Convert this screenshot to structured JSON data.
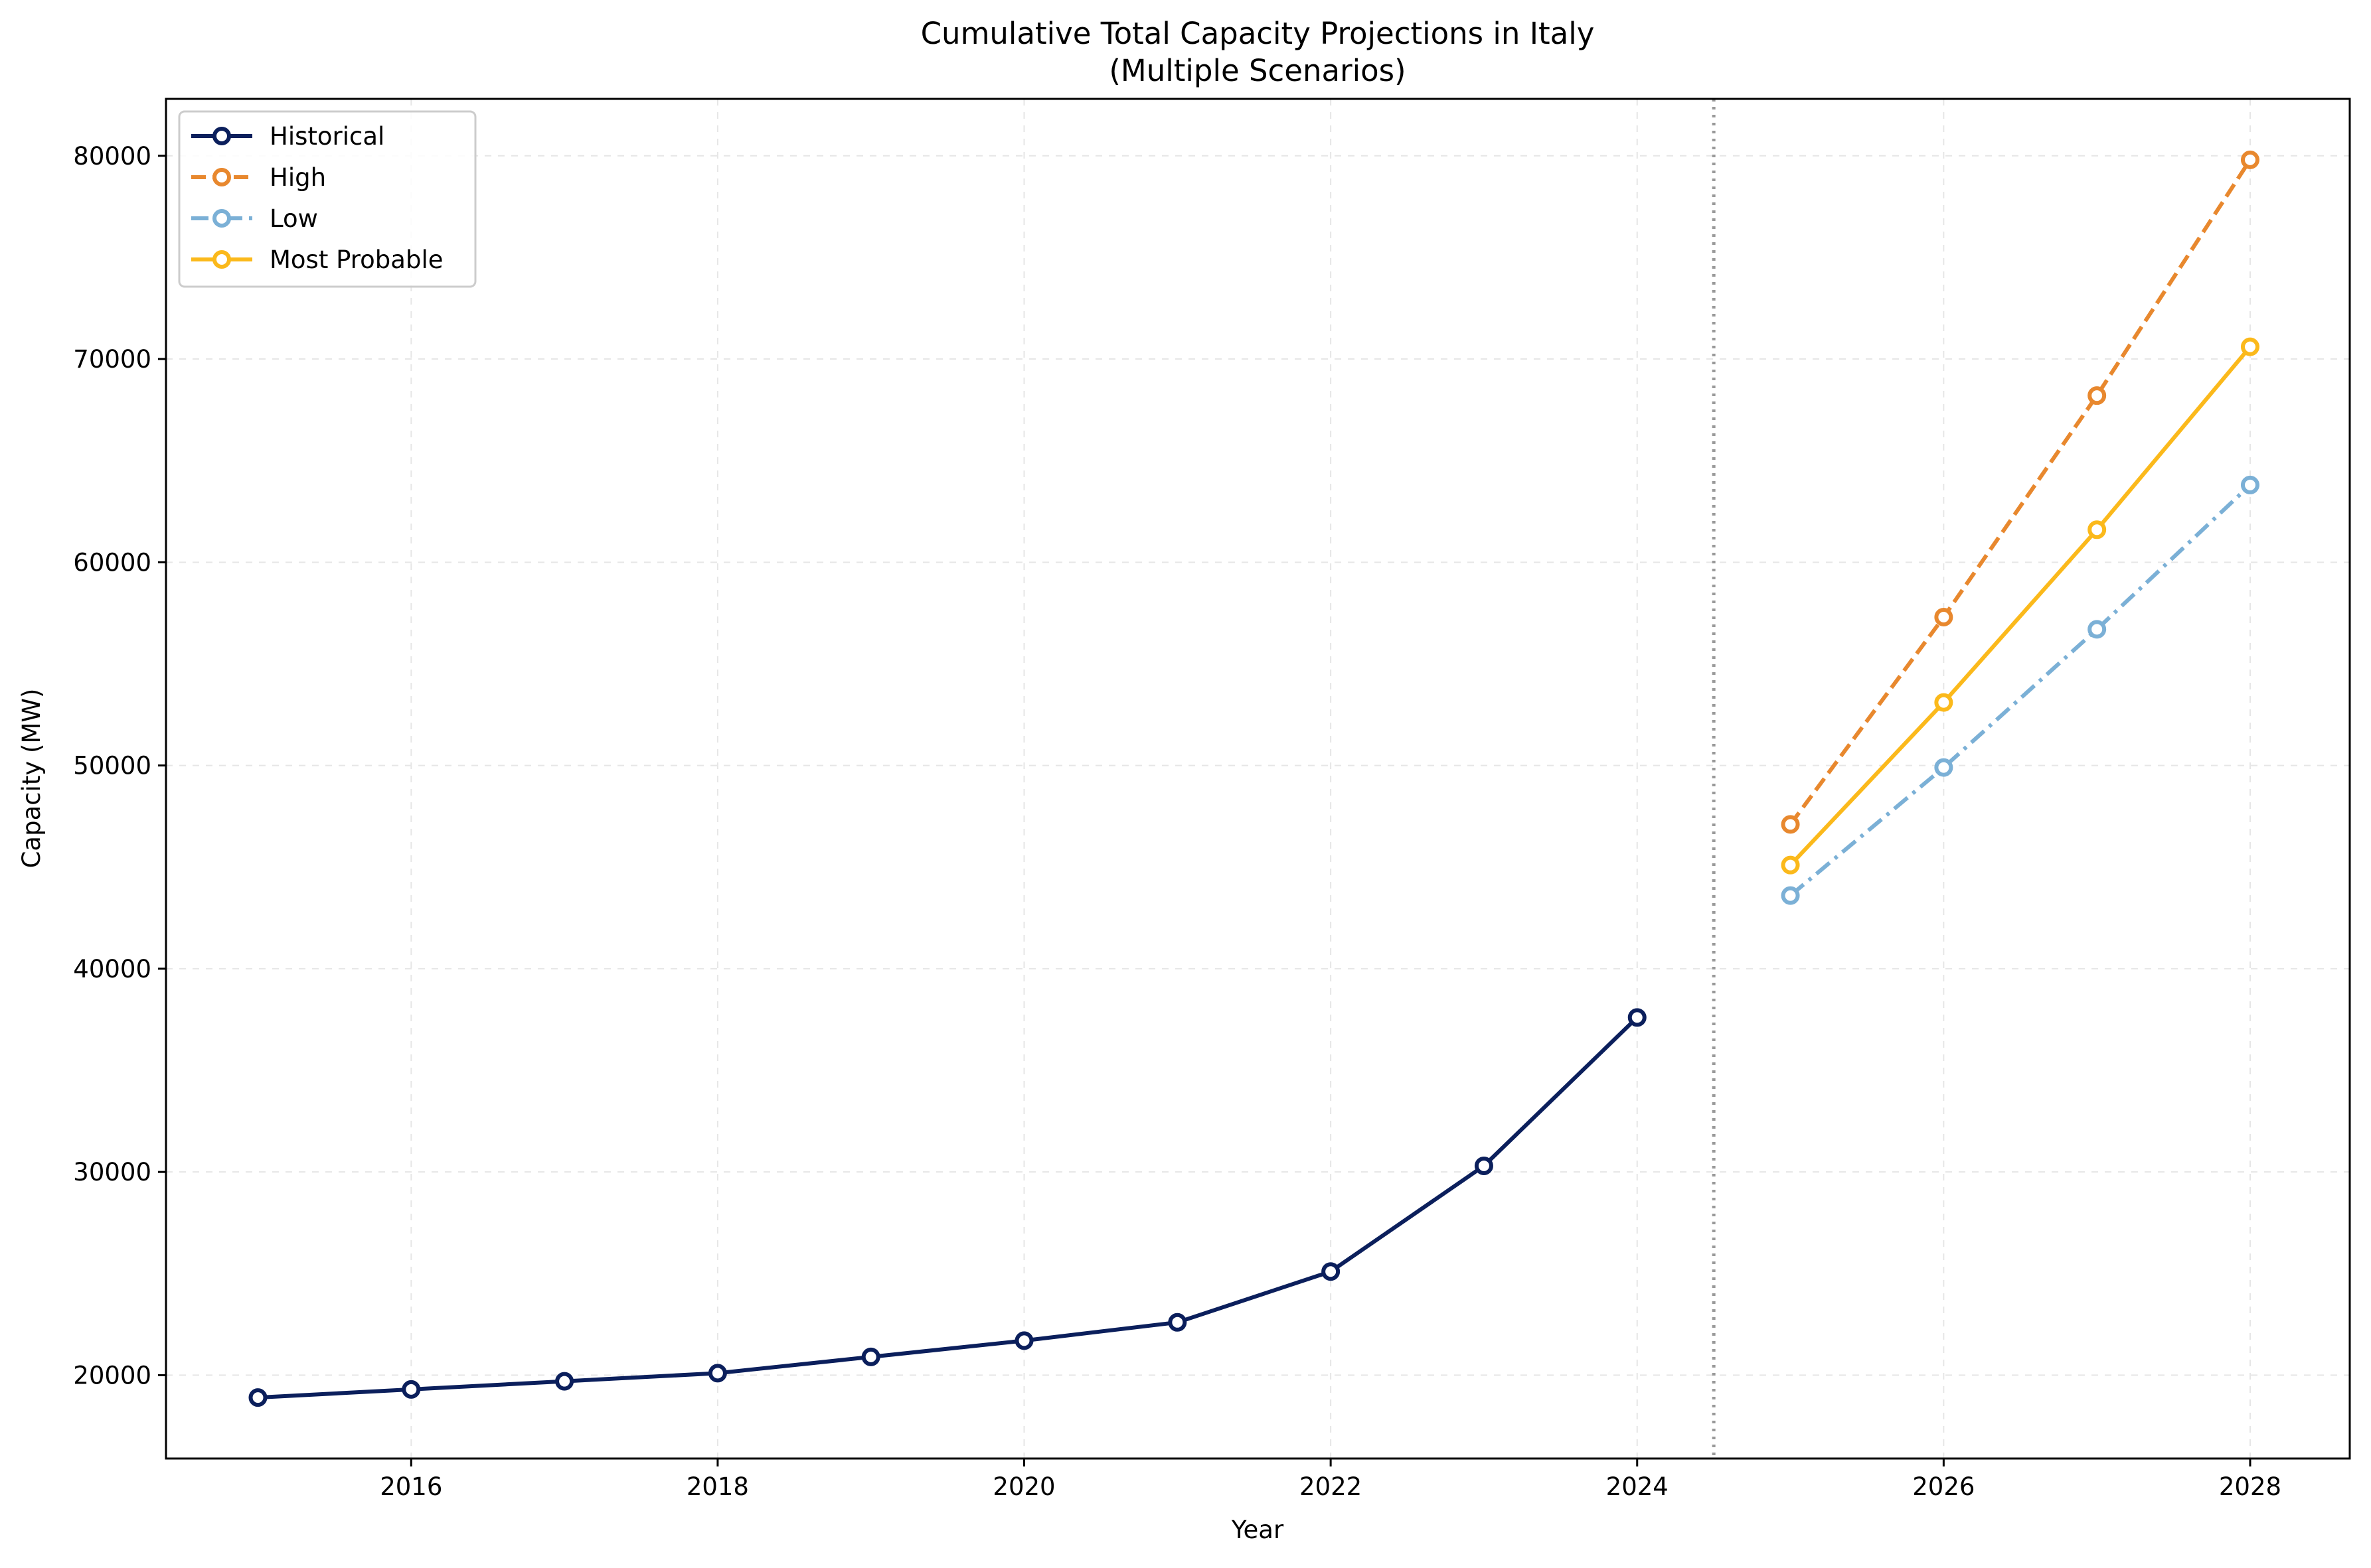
{
  "chart_data": {
    "type": "line",
    "title": "Cumulative Total Capacity Projections in Italy",
    "subtitle": "(Multiple Scenarios)",
    "xlabel": "Year",
    "ylabel": "Capacity (MW)",
    "xlim": [
      2014.4,
      2028.65
    ],
    "ylim": [
      15900,
      82800
    ],
    "x_ticks": [
      2016,
      2018,
      2020,
      2022,
      2024,
      2026,
      2028
    ],
    "y_ticks": [
      20000,
      30000,
      40000,
      50000,
      60000,
      70000,
      80000
    ],
    "grid": true,
    "legend_position": "top-left",
    "divider_x": 2024.5,
    "series": [
      {
        "name": "Historical",
        "color": "#0b1f5c",
        "line_style": "solid",
        "x": [
          2015,
          2016,
          2017,
          2018,
          2019,
          2020,
          2021,
          2022,
          2023,
          2024
        ],
        "values": [
          18900,
          19300,
          19700,
          20100,
          20900,
          21700,
          22600,
          25100,
          30300,
          37600
        ]
      },
      {
        "name": "High",
        "color": "#e8882e",
        "line_style": "dashed",
        "x": [
          2025,
          2026,
          2027,
          2028
        ],
        "values": [
          47100,
          57300,
          68200,
          79800
        ]
      },
      {
        "name": "Low",
        "color": "#7bb0d6",
        "line_style": "dashdot",
        "x": [
          2025,
          2026,
          2027,
          2028
        ],
        "values": [
          43600,
          49900,
          56700,
          63800
        ]
      },
      {
        "name": "Most Probable",
        "color": "#fbb91b",
        "line_style": "solid",
        "x": [
          2025,
          2026,
          2027,
          2028
        ],
        "values": [
          45100,
          53100,
          61600,
          70600
        ]
      }
    ]
  }
}
